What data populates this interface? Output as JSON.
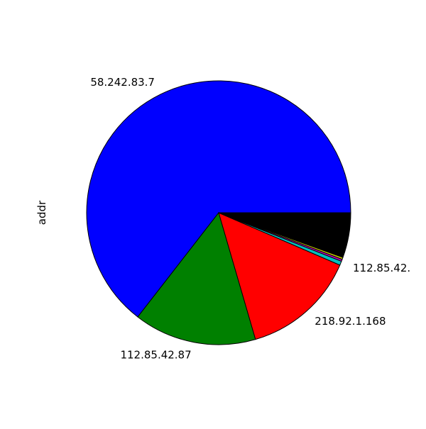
{
  "chart_data": {
    "type": "pie",
    "ylabel": "addr",
    "start_angle_deg": 0,
    "direction": "counterclockwise",
    "slices": [
      {
        "label": "58.242.83.7",
        "value": 64.5,
        "color": "#0000ff"
      },
      {
        "label": "112.85.42.87",
        "value": 15.0,
        "color": "#008000"
      },
      {
        "label": "218.92.1.168",
        "value": 14.0,
        "color": "#ff0000"
      },
      {
        "label": "112.85.42.",
        "value": 0.5,
        "color": "#00bfbf"
      },
      {
        "label": "",
        "value": 0.25,
        "color": "#bf00bf"
      },
      {
        "label": "",
        "value": 0.25,
        "color": "#bfbf00"
      },
      {
        "label": "",
        "value": 5.5,
        "color": "#000000"
      }
    ]
  }
}
